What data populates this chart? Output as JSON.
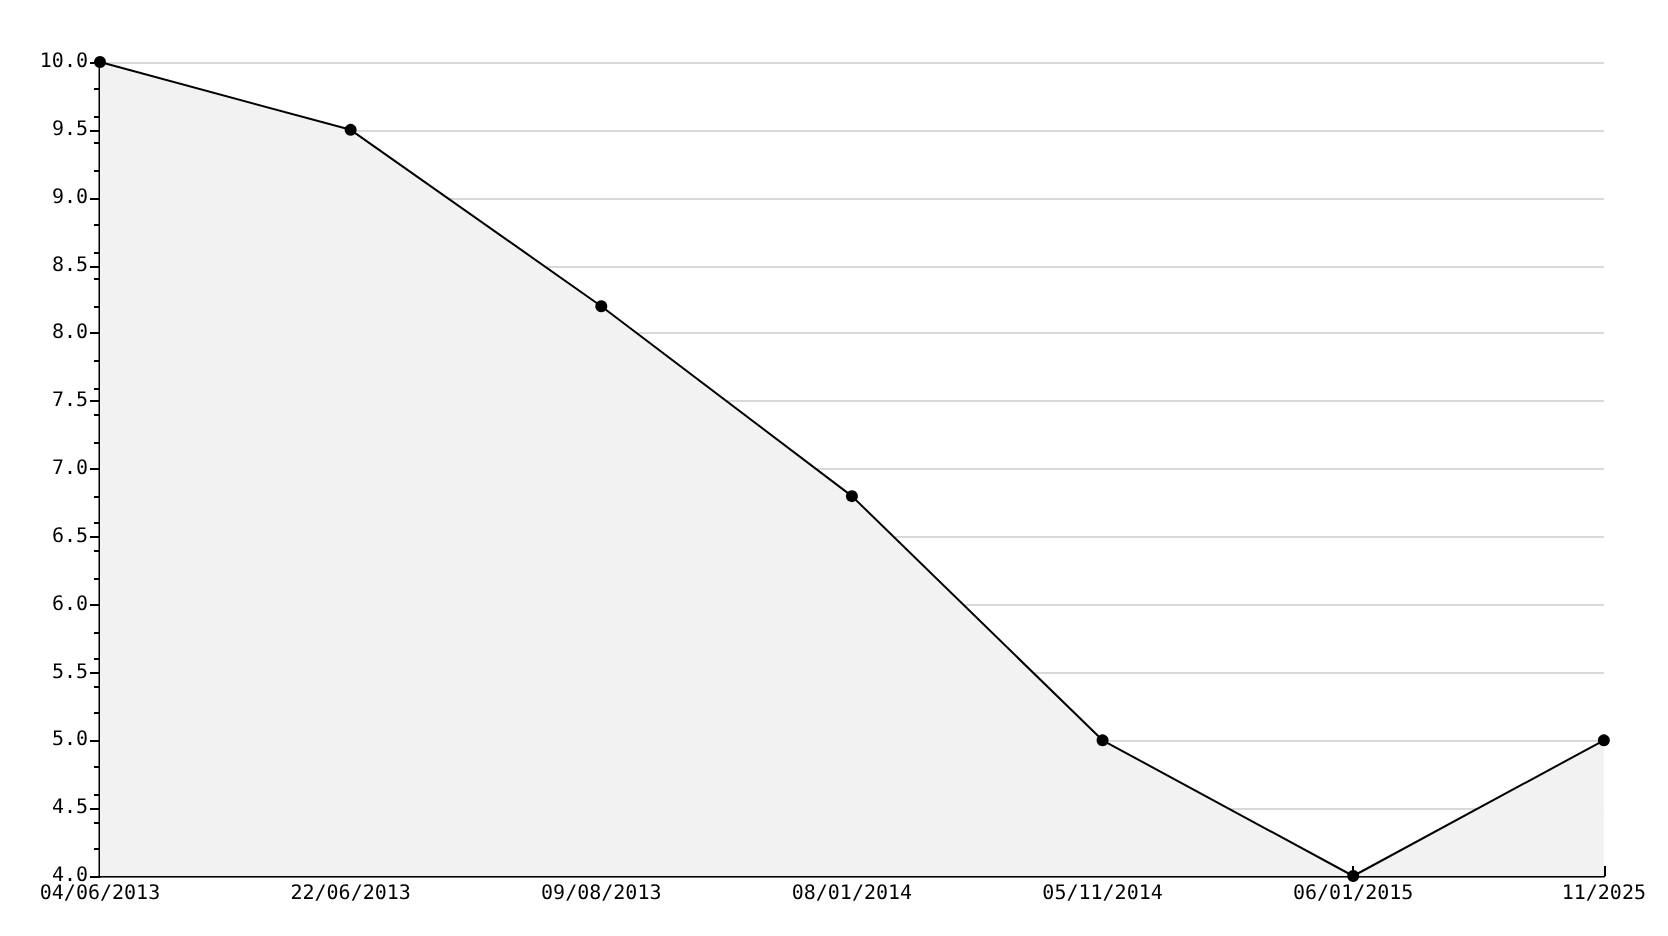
{
  "chart_data": {
    "type": "area",
    "categories": [
      "04/06/2013",
      "22/06/2013",
      "09/08/2013",
      "08/01/2014",
      "05/11/2014",
      "06/01/2015",
      "11/2025"
    ],
    "series": [
      {
        "color": "#000000",
        "values": [
          10.0,
          9.5,
          8.2,
          6.8,
          5.0,
          4.0,
          5.0
        ]
      }
    ],
    "ylim": [
      4.0,
      10.0
    ],
    "yticks": [
      {
        "value": 4,
        "label": "4.0"
      },
      {
        "value": 4.5,
        "label": "4.5"
      },
      {
        "value": 5,
        "label": "5.0"
      },
      {
        "value": 5.5,
        "label": "5.5"
      },
      {
        "value": 6,
        "label": "6.0"
      },
      {
        "value": 6.5,
        "label": "6.5"
      },
      {
        "value": 7,
        "label": "7.0"
      },
      {
        "value": 7.5,
        "label": "7.5"
      },
      {
        "value": 8,
        "label": "8.0"
      },
      {
        "value": 8.5,
        "label": "8.5"
      },
      {
        "value": 9,
        "label": "9.0"
      },
      {
        "value": 9.5,
        "label": "9.5"
      },
      {
        "value": 10,
        "label": "10.0"
      }
    ],
    "grid": "y",
    "marker": "circle",
    "line_style": "solid"
  }
}
